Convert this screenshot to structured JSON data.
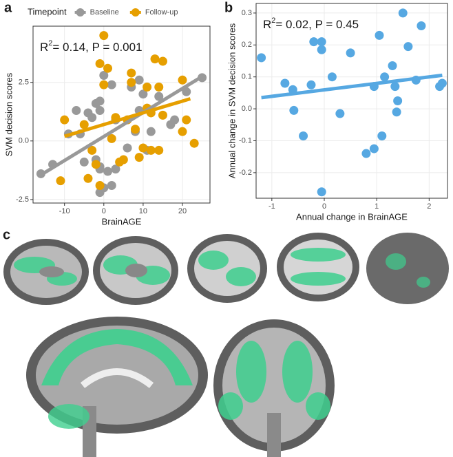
{
  "panel_labels": [
    "a",
    "b",
    "c"
  ],
  "chart_data": [
    {
      "type": "scatter",
      "ylabel": "SVM decision scores",
      "xlabel": "BrainAGE",
      "legend_title": "Timepoint",
      "legend_position": "top",
      "grid": true,
      "annotation": {
        "base": "R",
        "sup": "2",
        "rest": "= 0.14, P = 0.001"
      },
      "xlim": [
        -18,
        27
      ],
      "xticks": [
        -10,
        0,
        10,
        20
      ],
      "ylim": [
        -2.65,
        4.9
      ],
      "yticks": [
        -2.5,
        {
          "value": 0,
          "label": "0.0"
        },
        2.5
      ],
      "series": [
        {
          "name": "Baseline",
          "color": "#999999",
          "x": [
            -16,
            -13,
            -9,
            -7,
            -6,
            -5,
            -4,
            -3,
            -2,
            -2,
            -1,
            -1,
            -1,
            -1,
            0,
            0,
            -1,
            1,
            2,
            2,
            3,
            3,
            6,
            7,
            8,
            9,
            9,
            10,
            11,
            12,
            14,
            17,
            18,
            21,
            25
          ],
          "y": [
            -1.4,
            -1.0,
            0.3,
            1.3,
            0.3,
            -0.9,
            1.2,
            1.0,
            1.6,
            -0.8,
            1.7,
            1.3,
            -1.2,
            -1.1,
            2.8,
            -2.0,
            -2.2,
            -1.3,
            -1.9,
            2.4,
            0.9,
            -1.2,
            -0.3,
            2.3,
            0.4,
            1.3,
            2.6,
            2.0,
            -0.4,
            0.4,
            1.9,
            0.7,
            0.9,
            2.1,
            2.7
          ],
          "fit": {
            "x": [
              -16,
              25
            ],
            "y": [
              -1.45,
              2.75
            ]
          }
        },
        {
          "name": "Follow-up",
          "color": "#E69F00",
          "x": [
            -11,
            -10,
            -5,
            -4,
            -3,
            -2,
            -1,
            -1,
            0,
            0,
            1,
            2,
            3,
            4,
            5,
            6,
            7,
            7,
            8,
            9,
            10,
            11,
            11,
            12,
            12,
            13,
            14,
            14,
            15,
            15,
            20,
            20,
            21,
            23
          ],
          "y": [
            -1.7,
            0.9,
            0.7,
            -1.6,
            -0.4,
            -1.0,
            -1.9,
            3.3,
            4.5,
            2.4,
            3.1,
            0.1,
            1.0,
            -0.9,
            -0.8,
            0.9,
            2.9,
            2.5,
            0.5,
            -0.7,
            -0.3,
            1.4,
            2.3,
            1.2,
            -0.4,
            3.5,
            -0.4,
            2.3,
            3.4,
            1.1,
            0.4,
            2.6,
            0.9,
            -0.1
          ],
          "fit": {
            "x": [
              -10,
              22
            ],
            "y": [
              0.2,
              1.8
            ]
          }
        }
      ]
    },
    {
      "type": "scatter",
      "ylabel": "Annual change in SVM decision scores",
      "xlabel": "Annual change in BrainAGE",
      "grid": true,
      "annotation": {
        "base": "R",
        "sup": "2",
        "rest": "= 0.02, P = 0.45"
      },
      "xlim": [
        -1.3,
        2.35
      ],
      "xticks": [
        -1,
        0,
        1,
        2
      ],
      "ylim": [
        -0.28,
        0.33
      ],
      "yticks": [
        -0.2,
        -0.1,
        {
          "value": 0,
          "label": "0.0"
        },
        0.1,
        0.2,
        0.3
      ],
      "series": [
        {
          "color": "#56A8E2",
          "x": [
            -1.2,
            -0.75,
            -0.6,
            -0.58,
            -0.4,
            -0.25,
            -0.2,
            -0.05,
            -0.05,
            -0.05,
            0.15,
            0.3,
            0.5,
            0.8,
            0.95,
            0.95,
            1.05,
            1.1,
            1.15,
            1.3,
            1.35,
            1.4,
            1.38,
            1.5,
            1.6,
            1.75,
            1.85,
            2.2,
            2.25
          ],
          "y": [
            0.16,
            0.08,
            0.06,
            -0.005,
            -0.085,
            0.075,
            0.21,
            0.21,
            0.185,
            -0.26,
            0.1,
            -0.015,
            0.175,
            -0.14,
            -0.125,
            0.07,
            0.23,
            -0.085,
            0.1,
            0.135,
            0.07,
            0.025,
            -0.01,
            0.3,
            0.195,
            0.09,
            0.26,
            0.07,
            0.08
          ],
          "fit": {
            "x": [
              -1.2,
              2.25
            ],
            "y": [
              0.035,
              0.105
            ]
          }
        }
      ]
    }
  ]
}
